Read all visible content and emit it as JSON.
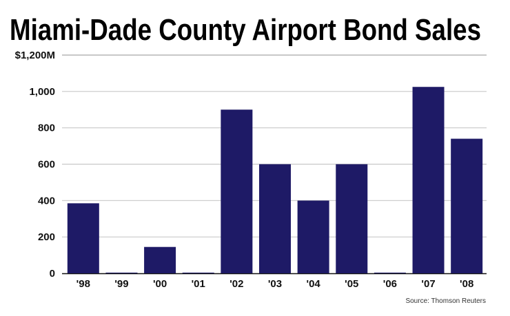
{
  "chart_data": {
    "type": "bar",
    "title": "Miami-Dade County Airport Bond Sales",
    "categories": [
      "'98",
      "'99",
      "'00",
      "'01",
      "'02",
      "'03",
      "'04",
      "'05",
      "'06",
      "'07",
      "'08"
    ],
    "values": [
      385,
      0,
      145,
      0,
      900,
      600,
      400,
      600,
      0,
      1025,
      740
    ],
    "ylim": [
      0,
      1200
    ],
    "yticks": [
      0,
      200,
      400,
      600,
      800,
      1000,
      1200
    ],
    "ytick_labels": [
      "0",
      "200",
      "400",
      "600",
      "800",
      "1,000",
      "$1,200M"
    ],
    "grid": true,
    "bar_color": "#1e1a66",
    "grid_color": "#c8c8c8",
    "source": "Source: Thomson Reuters"
  }
}
